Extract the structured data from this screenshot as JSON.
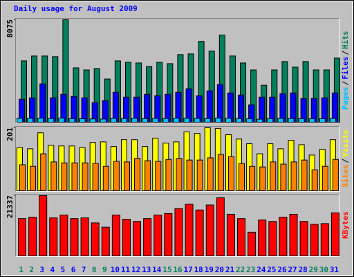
{
  "chart_data": [
    {
      "type": "bar",
      "title": "Daily usage for August 2009",
      "ylim": [
        0,
        8075
      ],
      "yticks": [
        8075
      ],
      "legend_separator": "/",
      "series": [
        {
          "name": "Pages",
          "color": "#00c0ff",
          "values": [
            300,
            310,
            320,
            290,
            330,
            280,
            270,
            260,
            250,
            300,
            290,
            310,
            280,
            300,
            290,
            320,
            310,
            300,
            290,
            330,
            310,
            280,
            270,
            240,
            280,
            300,
            290,
            280,
            270,
            280,
            300
          ]
        },
        {
          "name": "Files",
          "color": "#0000ff",
          "values": [
            1813,
            1923,
            3021,
            1923,
            2197,
            2033,
            1923,
            1538,
            1703,
            2362,
            1978,
            1978,
            2197,
            2088,
            2197,
            2362,
            2637,
            2088,
            2472,
            2966,
            2307,
            2142,
            1373,
            1978,
            1978,
            2252,
            2307,
            1868,
            1868,
            1923,
            2307
          ]
        },
        {
          "name": "Hits",
          "color": "#00805c",
          "values": [
            4834,
            5219,
            5219,
            5164,
            8075,
            4285,
            4120,
            4230,
            3406,
            4834,
            4724,
            4669,
            4395,
            4724,
            4614,
            5328,
            5383,
            6372,
            5603,
            6867,
            5219,
            4669,
            4120,
            2911,
            4120,
            4779,
            4340,
            4779,
            4120,
            4120,
            5054
          ]
        }
      ]
    },
    {
      "type": "bar",
      "ylim": [
        0,
        201
      ],
      "yticks": [
        201
      ],
      "legend_separator": "/",
      "series": [
        {
          "name": "Sites",
          "color": "#ff8000",
          "values": [
            83,
            78,
            118,
            92,
            89,
            89,
            89,
            87,
            78,
            94,
            92,
            103,
            96,
            94,
            100,
            103,
            98,
            98,
            105,
            116,
            109,
            87,
            78,
            76,
            92,
            85,
            92,
            98,
            67,
            78,
            100
          ]
        },
        {
          "name": "Visits",
          "color": "#ffff00",
          "values": [
            138,
            134,
            185,
            145,
            143,
            143,
            138,
            154,
            156,
            141,
            163,
            163,
            141,
            168,
            152,
            156,
            188,
            183,
            201,
            199,
            179,
            165,
            150,
            118,
            150,
            134,
            161,
            147,
            114,
            132,
            163
          ]
        }
      ]
    },
    {
      "type": "bar",
      "ylim": [
        0,
        21337
      ],
      "yticks": [
        21337
      ],
      "categories": [
        "1",
        "2",
        "3",
        "4",
        "5",
        "6",
        "7",
        "8",
        "9",
        "10",
        "11",
        "12",
        "13",
        "14",
        "15",
        "16",
        "17",
        "18",
        "19",
        "20",
        "21",
        "22",
        "23",
        "24",
        "25",
        "26",
        "27",
        "28",
        "29",
        "30",
        "31"
      ],
      "category_colors": [
        "#00805c",
        "#00805c",
        "#0000ff",
        "#0000ff",
        "#0000ff",
        "#0000ff",
        "#0000ff",
        "#00805c",
        "#00805c",
        "#0000ff",
        "#0000ff",
        "#0000ff",
        "#0000ff",
        "#0000ff",
        "#00805c",
        "#00805c",
        "#0000ff",
        "#0000ff",
        "#0000ff",
        "#0000ff",
        "#0000ff",
        "#00805c",
        "#00805c",
        "#0000ff",
        "#0000ff",
        "#0000ff",
        "#0000ff",
        "#0000ff",
        "#00805c",
        "#00805c",
        "#0000ff"
      ],
      "series": [
        {
          "name": "KBytes",
          "color": "#ff0000",
          "values": [
            13208,
            13716,
            21337,
            13462,
            14478,
            13208,
            13462,
            11684,
            10160,
            14478,
            12954,
            12192,
            13208,
            14478,
            14986,
            16764,
            18288,
            16256,
            18034,
            20574,
            14732,
            13208,
            8382,
            12700,
            12192,
            13716,
            14732,
            12192,
            11176,
            11430,
            15240
          ]
        }
      ]
    }
  ]
}
